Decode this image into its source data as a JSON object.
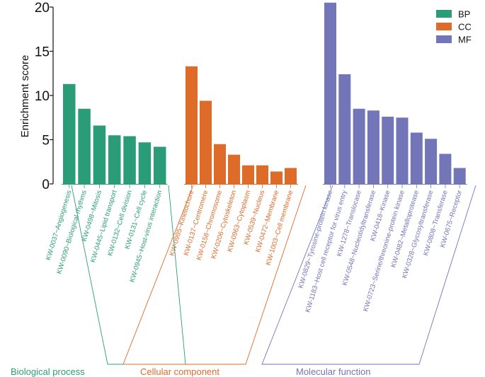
{
  "chart_data": {
    "type": "bar",
    "title": "",
    "xlabel": "",
    "ylabel": "Enrichment score",
    "ylim": [
      0,
      20
    ],
    "yticks": [
      0,
      5,
      10,
      15,
      20
    ],
    "legend_position": "top-right",
    "series": [
      {
        "name": "BP",
        "group_label": "Biological process",
        "color": "#2a9d78",
        "categories": [
          "KW-0037~Angiogenesis",
          "KW-0090~Biological rhythms",
          "KW-0498~Mitosis",
          "KW-0445~Lipid transport",
          "KW-0132~Cell division",
          "KW-0131~Cell cycle",
          "KW-0945~Host-virus interaction"
        ],
        "values": [
          11.3,
          8.5,
          6.6,
          5.5,
          5.4,
          4.7,
          4.2
        ]
      },
      {
        "name": "CC",
        "group_label": "Cellular component",
        "color": "#de6b28",
        "categories": [
          "KW-0995~Kinetochore",
          "KW-0137~Centromere",
          "KW-0158~Chromosome",
          "KW-0206~Cytoskeleton",
          "KW-0963~Cytoplasm",
          "KW-0539~Nucleus",
          "KW-0472~Membrane",
          "KW-1003~Cell membrane"
        ],
        "values": [
          13.3,
          9.4,
          4.5,
          3.3,
          2.1,
          2.1,
          1.4,
          1.8
        ]
      },
      {
        "name": "MF",
        "group_label": "Molecular function",
        "color": "#7275b8",
        "categories": [
          "KW-0829~Tyrosine-protein kinase",
          "KW-1183~Host cell receptor for virus entry",
          "KW-1278~Translocase",
          "KW-0548~Nucleotidyltransferase",
          "KW-0418~Kinase",
          "KW-0723~Serine/threonine-protein kinase",
          "KW-0482~Metalloprotease",
          "KW-0328~Glycosyltransferase",
          "KW-0808~Transferase",
          "KW-0675~Receptor"
        ],
        "values": [
          20.5,
          12.4,
          8.5,
          8.3,
          7.6,
          7.5,
          5.8,
          5.1,
          3.4,
          1.8
        ]
      }
    ]
  }
}
